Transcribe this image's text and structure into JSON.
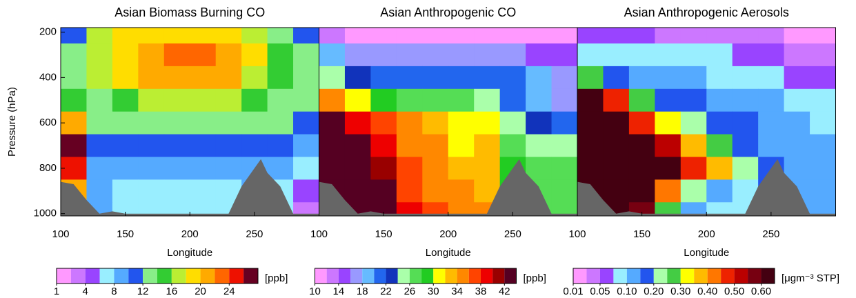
{
  "chart_data": [
    {
      "type": "contour",
      "title": "Asian Biomass Burning CO",
      "xlabel": "Longitude",
      "ylabel": "Pressure (hPa)",
      "x": [
        110,
        130,
        150,
        170,
        190,
        210,
        230,
        250,
        270,
        290
      ],
      "y": [
        200,
        300,
        400,
        500,
        600,
        700,
        800,
        900,
        1000
      ],
      "z": [
        [
          10,
          16,
          18,
          18,
          18,
          18,
          18,
          16,
          12,
          10
        ],
        [
          12,
          16,
          18,
          21,
          23,
          23,
          21,
          18,
          14,
          12
        ],
        [
          12,
          16,
          18,
          20,
          21,
          21,
          20,
          17,
          14,
          12
        ],
        [
          14,
          12,
          14,
          16,
          17,
          17,
          16,
          15,
          13,
          12
        ],
        [
          20,
          12,
          12,
          13,
          13,
          13,
          13,
          13,
          12,
          11
        ],
        [
          26,
          10,
          11,
          11,
          11,
          11,
          11,
          10,
          11,
          9
        ],
        [
          24,
          9,
          8,
          9,
          9,
          9,
          9,
          8,
          8,
          7
        ],
        [
          20,
          8,
          7,
          7,
          7,
          7,
          7,
          8,
          6,
          5
        ],
        [
          20,
          8,
          7,
          7,
          7,
          7,
          7,
          8,
          6,
          3
        ]
      ],
      "xlim": [
        100,
        300
      ],
      "ylim": [
        1010,
        180
      ],
      "xticks": [
        100,
        150,
        200,
        250
      ],
      "yticks": [
        200,
        400,
        600,
        800,
        1000
      ],
      "terrain": {
        "color": "#666666",
        "x": [
          100,
          110,
          120,
          130,
          140,
          150,
          230,
          240,
          250,
          255,
          260,
          270,
          280,
          300
        ],
        "values": [
          860,
          870,
          940,
          1000,
          990,
          1000,
          1000,
          880,
          800,
          760,
          820,
          880,
          1000,
          1000
        ]
      },
      "colorbar": {
        "label": "[ppb]",
        "levels": [
          1,
          2,
          4,
          6,
          8,
          10,
          12,
          14,
          16,
          18,
          20,
          22,
          24,
          26,
          28
        ],
        "colors": [
          "#ff99ff",
          "#cc77ff",
          "#9944ff",
          "#99eeff",
          "#55aaff",
          "#2255ee",
          "#88ee88",
          "#33cc33",
          "#bbee33",
          "#ffdd00",
          "#ffaa00",
          "#ff6600",
          "#ee1100",
          "#660022"
        ],
        "ticks": [
          1,
          4,
          8,
          12,
          16,
          20,
          24
        ]
      }
    },
    {
      "type": "contour",
      "title": "Asian Anthropogenic CO",
      "xlabel": "Longitude",
      "x": [
        110,
        130,
        150,
        170,
        190,
        210,
        230,
        250,
        270,
        290
      ],
      "y": [
        200,
        300,
        400,
        500,
        600,
        700,
        800,
        900,
        1000
      ],
      "z": [
        [
          12,
          11,
          11,
          11,
          11,
          11,
          11,
          11,
          11,
          11
        ],
        [
          18,
          17,
          16,
          16,
          16,
          16,
          16,
          16,
          15,
          14
        ],
        [
          24,
          22,
          21,
          21,
          21,
          21,
          20,
          20,
          18,
          16
        ],
        [
          34,
          30,
          28,
          27,
          27,
          26,
          25,
          20,
          18,
          17
        ],
        [
          44,
          38,
          36,
          34,
          33,
          30,
          30,
          25,
          22,
          20
        ],
        [
          44,
          44,
          38,
          35,
          34,
          31,
          32,
          27,
          25,
          24
        ],
        [
          44,
          44,
          40,
          36,
          34,
          32,
          32,
          28,
          26,
          26
        ],
        [
          44,
          44,
          42,
          36,
          35,
          34,
          33,
          28,
          27,
          27
        ],
        [
          44,
          44,
          42,
          38,
          36,
          34,
          34,
          28,
          27,
          27
        ]
      ],
      "xlim": [
        100,
        300
      ],
      "ylim": [
        1010,
        180
      ],
      "xticks": [
        100,
        150,
        200,
        250
      ],
      "terrain": {
        "color": "#666666",
        "x": [
          100,
          110,
          120,
          130,
          140,
          150,
          230,
          240,
          250,
          255,
          260,
          270,
          280,
          300
        ],
        "values": [
          860,
          870,
          940,
          1000,
          990,
          1000,
          1000,
          880,
          800,
          760,
          820,
          880,
          1000,
          1000
        ]
      },
      "colorbar": {
        "label": "[ppb]",
        "levels": [
          10,
          12,
          14,
          16,
          18,
          20,
          22,
          24,
          26,
          28,
          30,
          32,
          34,
          36,
          38,
          40,
          42,
          44
        ],
        "colors": [
          "#ff99ff",
          "#cc77ff",
          "#9944ff",
          "#9999ff",
          "#66bbff",
          "#2266ee",
          "#1133bb",
          "#aaffaa",
          "#55dd55",
          "#22cc22",
          "#ffff00",
          "#ffbb00",
          "#ff8800",
          "#ff4400",
          "#ee0000",
          "#990000",
          "#550022"
        ],
        "ticks": [
          10,
          14,
          18,
          22,
          26,
          30,
          34,
          38,
          42
        ]
      }
    },
    {
      "type": "contour",
      "title": "Asian Anthropogenic Aerosols",
      "xlabel": "Longitude",
      "x": [
        110,
        130,
        150,
        170,
        190,
        210,
        230,
        250,
        270,
        290
      ],
      "y": [
        200,
        300,
        400,
        500,
        600,
        700,
        800,
        900,
        1000
      ],
      "z": [
        [
          0.06,
          0.05,
          0.05,
          0.04,
          0.04,
          0.04,
          0.04,
          0.03,
          0.02,
          0.02
        ],
        [
          0.09,
          0.09,
          0.08,
          0.08,
          0.08,
          0.08,
          0.07,
          0.05,
          0.04,
          0.04
        ],
        [
          0.25,
          0.15,
          0.12,
          0.1,
          0.1,
          0.09,
          0.09,
          0.08,
          0.07,
          0.07
        ],
        [
          0.65,
          0.45,
          0.25,
          0.18,
          0.15,
          0.13,
          0.12,
          0.1,
          0.09,
          0.08
        ],
        [
          0.65,
          0.65,
          0.45,
          0.3,
          0.22,
          0.18,
          0.15,
          0.12,
          0.1,
          0.09
        ],
        [
          0.65,
          0.65,
          0.65,
          0.5,
          0.35,
          0.25,
          0.18,
          0.14,
          0.11,
          0.1
        ],
        [
          0.65,
          0.65,
          0.65,
          0.62,
          0.48,
          0.38,
          0.22,
          0.15,
          0.12,
          0.1
        ],
        [
          0.65,
          0.65,
          0.62,
          0.4,
          0.22,
          0.12,
          0.08,
          0.15,
          0.12,
          0.1
        ],
        [
          0.65,
          0.65,
          0.55,
          0.25,
          0.12,
          0.08,
          0.08,
          0.15,
          0.12,
          0.1
        ]
      ],
      "xlim": [
        100,
        300
      ],
      "ylim": [
        1010,
        180
      ],
      "xticks": [
        100,
        150,
        200,
        250
      ],
      "terrain": {
        "color": "#666666",
        "x": [
          100,
          110,
          120,
          130,
          140,
          150,
          230,
          240,
          250,
          255,
          260,
          270,
          280,
          300
        ],
        "values": [
          860,
          870,
          940,
          1000,
          990,
          1000,
          1000,
          880,
          800,
          760,
          820,
          880,
          1000,
          1000
        ]
      },
      "colorbar": {
        "label": "[μgm⁻³ STP]",
        "levels": [
          0.01,
          0.03,
          0.05,
          0.075,
          0.1,
          0.15,
          0.2,
          0.25,
          0.3,
          0.35,
          0.4,
          0.45,
          0.5,
          0.55,
          0.6,
          0.7
        ],
        "colors": [
          "#ff99ff",
          "#cc77ff",
          "#9944ff",
          "#99eeff",
          "#55aaff",
          "#2255ee",
          "#aaffaa",
          "#44cc44",
          "#ffff00",
          "#ffbb00",
          "#ff7700",
          "#ee2200",
          "#bb0000",
          "#770011",
          "#440011"
        ],
        "ticks": [
          0.01,
          0.05,
          {
            "value": 0.1,
            "label": "0.10"
          },
          {
            "value": 0.2,
            "label": "0.20"
          },
          {
            "value": 0.3,
            "label": "0.30"
          },
          {
            "value": 0.4,
            "label": "0.40"
          },
          {
            "value": 0.5,
            "label": "0.50"
          },
          {
            "value": 0.6,
            "label": "0.60"
          }
        ]
      }
    }
  ]
}
